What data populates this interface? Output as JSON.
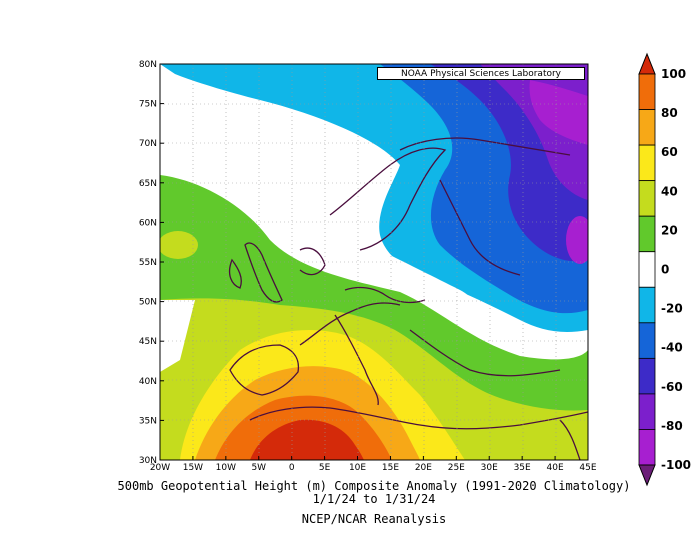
{
  "credit": "NOAA Physical Sciences Laboratory",
  "caption": {
    "line1": "500mb Geopotential Height (m) Composite Anomaly (1991-2020 Climatology)",
    "line2": "1/1/24 to 1/31/24",
    "line3": "NCEP/NCAR Reanalysis"
  },
  "axes": {
    "lon_labels": [
      "20W",
      "15W",
      "10W",
      "5W",
      "0",
      "5E",
      "10E",
      "15E",
      "20E",
      "25E",
      "30E",
      "35E",
      "40E",
      "45E"
    ],
    "lat_labels": [
      "30N",
      "35N",
      "40N",
      "45N",
      "50N",
      "55N",
      "60N",
      "65N",
      "70N",
      "75N",
      "80N"
    ]
  },
  "colorbar": {
    "labels": [
      "100",
      "80",
      "60",
      "40",
      "20",
      "0",
      "-20",
      "-40",
      "-60",
      "-80",
      "-100"
    ],
    "colors": [
      "#d42a0a",
      "#f06d0a",
      "#f7a817",
      "#fbe81a",
      "#c4dc1e",
      "#61c92c",
      "#ffffff",
      "#10b6e8",
      "#1565d8",
      "#3d2bc8",
      "#7c1fcc",
      "#a71fd0",
      "#6b1e78"
    ]
  },
  "field_colors": {
    "land_outline": "#4a0e3e",
    "grid": "#999999"
  }
}
